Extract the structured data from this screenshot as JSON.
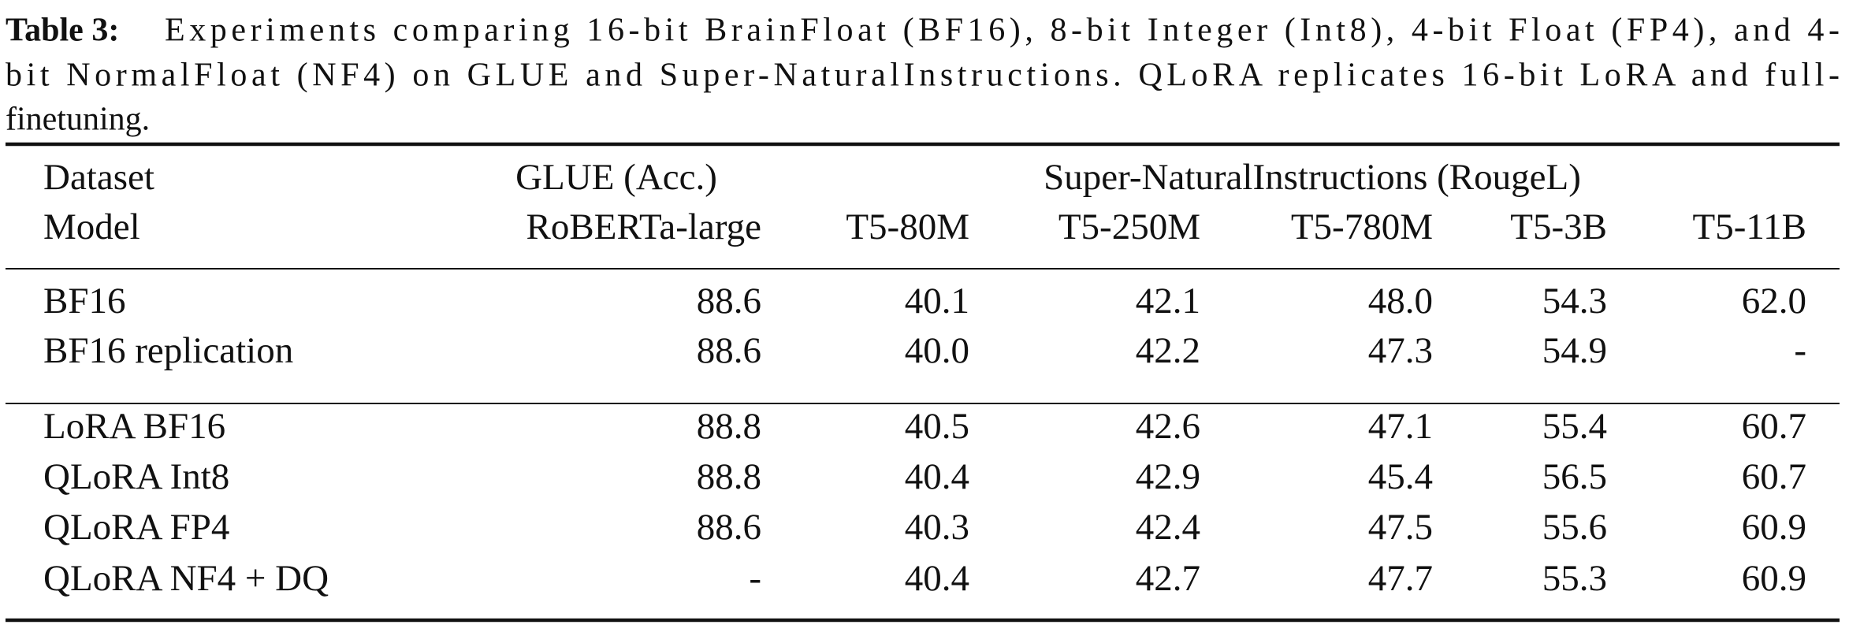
{
  "caption": {
    "label": "Table 3:",
    "lines": [
      "Experiments comparing 16-bit BrainFloat (BF16), 8-bit Integer (Int8), 4-bit Float (FP4), and 4-",
      "bit NormalFloat (NF4) on GLUE and Super-NaturalInstructions. QLoRA replicates 16-bit LoRA and full-",
      "finetuning."
    ]
  },
  "table": {
    "header": {
      "dataset": "Dataset",
      "model": "Model",
      "glue": "GLUE (Acc.)",
      "sni": "Super-NaturalInstructions (RougeL)",
      "models": [
        "RoBERTa-large",
        "T5-80M",
        "T5-250M",
        "T5-780M",
        "T5-3B",
        "T5-11B"
      ]
    },
    "groups": [
      [
        {
          "label": "BF16",
          "values": [
            "88.6",
            "40.1",
            "42.1",
            "48.0",
            "54.3",
            "62.0"
          ]
        },
        {
          "label": "BF16 replication",
          "values": [
            "88.6",
            "40.0",
            "42.2",
            "47.3",
            "54.9",
            "-"
          ]
        }
      ],
      [
        {
          "label": "LoRA BF16",
          "values": [
            "88.8",
            "40.5",
            "42.6",
            "47.1",
            "55.4",
            "60.7"
          ]
        },
        {
          "label": "QLoRA Int8",
          "values": [
            "88.8",
            "40.4",
            "42.9",
            "45.4",
            "56.5",
            "60.7"
          ]
        },
        {
          "label": "QLoRA FP4",
          "values": [
            "88.6",
            "40.3",
            "42.4",
            "47.5",
            "55.6",
            "60.9"
          ]
        },
        {
          "label": "QLoRA NF4 + DQ",
          "values": [
            "-",
            "40.4",
            "42.7",
            "47.7",
            "55.3",
            "60.9"
          ]
        }
      ]
    ]
  }
}
